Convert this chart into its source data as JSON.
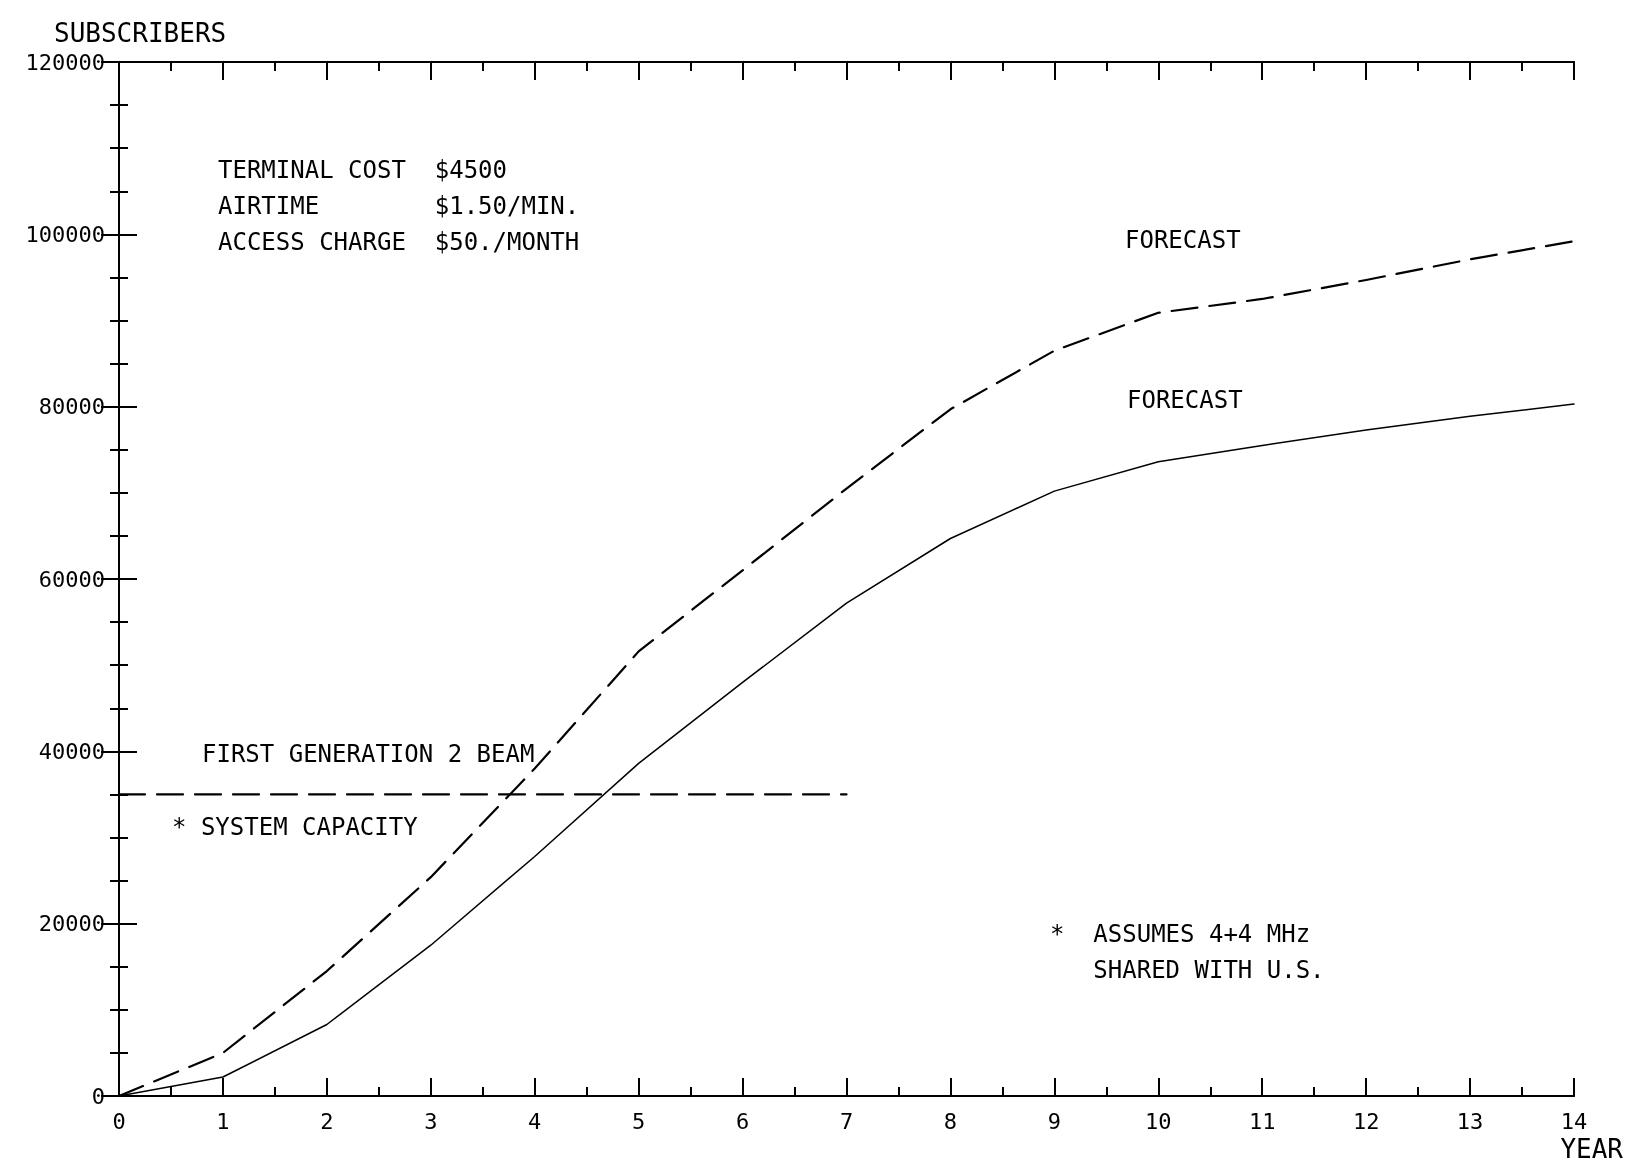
{
  "chart_data": {
    "type": "line",
    "xlabel": "YEAR",
    "ylabel": "SUBSCRIBERS",
    "x": [
      0,
      1,
      2,
      3,
      4,
      5,
      6,
      7,
      8,
      9,
      10,
      11,
      12,
      13,
      14
    ],
    "series": [
      {
        "name": "FORECAST",
        "color": "#000000",
        "line_style": "dashed",
        "values": [
          0,
          5000,
          14500,
          25400,
          38000,
          51600,
          61000,
          70500,
          79700,
          86500,
          90900,
          92500,
          94700,
          97100,
          99200
        ]
      },
      {
        "name": "FORECAST",
        "color": "#000000",
        "line_style": "solid",
        "values": [
          0,
          2200,
          8300,
          17500,
          27800,
          38600,
          48000,
          57200,
          64700,
          70200,
          73600,
          75500,
          77300,
          78900,
          80300
        ]
      },
      {
        "type": "line",
        "color": "#000000",
        "line_style": "dashed",
        "x": [
          0,
          7
        ],
        "values": [
          35000,
          35000
        ]
      }
    ],
    "xlim": [
      0,
      14
    ],
    "xticks": [
      0,
      1,
      2,
      3,
      4,
      5,
      6,
      7,
      8,
      9,
      10,
      11,
      12,
      13,
      14
    ],
    "ylim": [
      0,
      120000
    ],
    "yticks": [
      0,
      20000,
      40000,
      60000,
      80000,
      100000,
      120000
    ],
    "annotations": [
      "TERMINAL COST  $4500",
      "AIRTIME        $1.50/MIN.",
      "ACCESS CHARGE  $50./MONTH",
      "FIRST GENERATION 2 BEAM",
      "* SYSTEM CAPACITY",
      "*  ASSUMES 4+4 MHz",
      "   SHARED WITH U.S."
    ],
    "grid": false,
    "legend": false,
    "marker": "none"
  }
}
